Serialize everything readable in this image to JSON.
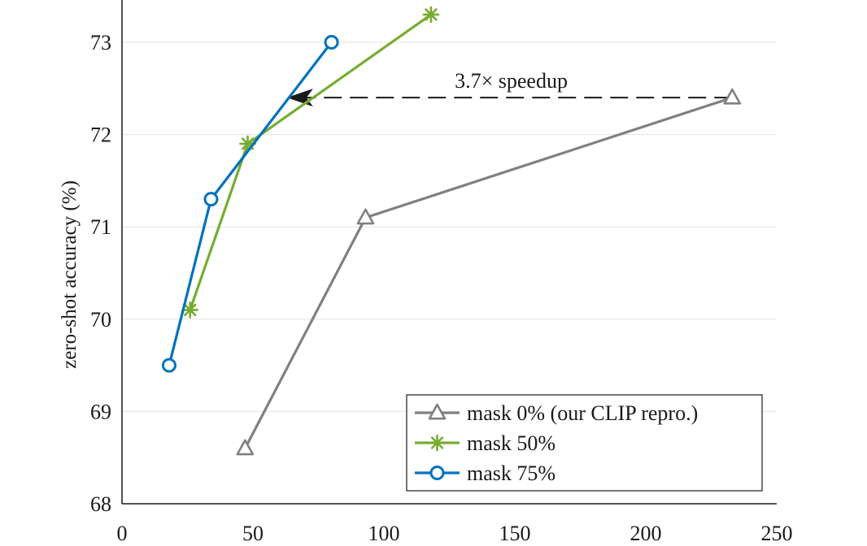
{
  "chart_data": {
    "type": "line",
    "title": "",
    "xlabel": "",
    "ylabel": "zero-shot accuracy (%)",
    "xlim": [
      0,
      250
    ],
    "ylim": [
      68,
      73.5
    ],
    "xticks": [
      0,
      50,
      100,
      150,
      200,
      250
    ],
    "yticks": [
      68,
      69,
      70,
      71,
      72,
      73
    ],
    "grid": "horizontal",
    "legend_position": "bottom-right",
    "series": [
      {
        "name": "mask 0% (our CLIP repro.)",
        "color": "#808080",
        "marker": "triangle-open",
        "x": [
          47,
          93,
          233
        ],
        "y": [
          68.6,
          71.1,
          72.4
        ]
      },
      {
        "name": "mask 50%",
        "color": "#77ac30",
        "marker": "asterisk",
        "x": [
          26,
          48,
          118
        ],
        "y": [
          70.1,
          71.9,
          73.3
        ]
      },
      {
        "name": "mask 75%",
        "color": "#0072bd",
        "marker": "circle-open",
        "x": [
          18,
          34,
          80
        ],
        "y": [
          69.5,
          71.3,
          73.0
        ]
      }
    ],
    "annotation": {
      "text": "3.7× speedup",
      "arrow_from": [
        233,
        72.4
      ],
      "arrow_to": [
        63,
        72.4
      ],
      "style": "dashed-arrow"
    }
  }
}
